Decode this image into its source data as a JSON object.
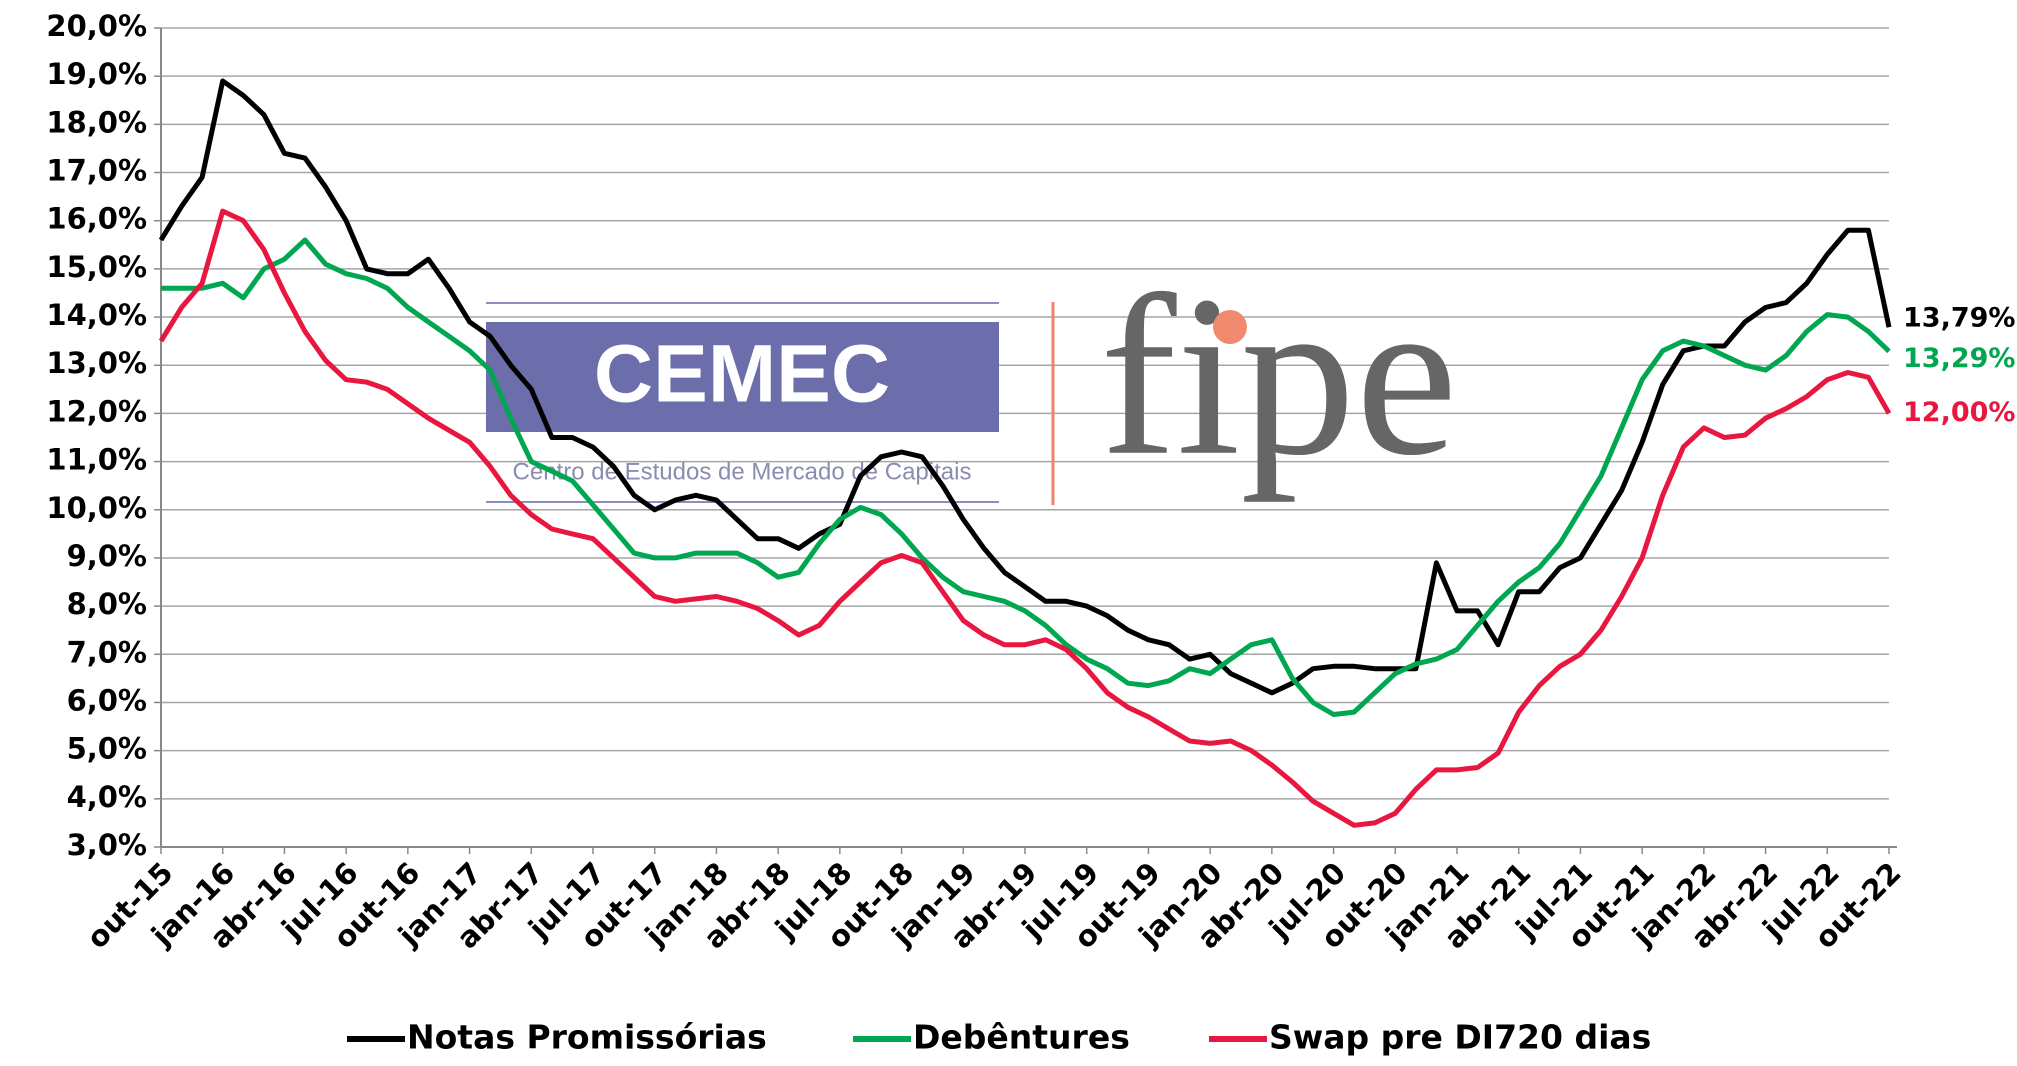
{
  "chart_data": {
    "type": "line",
    "logo": {
      "name": "CEMEC",
      "subtitle": "Centro de Estudos de Mercado de Capitais",
      "brand": "fipe"
    },
    "categories": [
      "out-15",
      null,
      null,
      "jan-16",
      null,
      null,
      "abr-16",
      null,
      null,
      "jul-16",
      null,
      null,
      "out-16",
      null,
      null,
      "jan-17",
      null,
      null,
      "abr-17",
      null,
      null,
      "jul-17",
      null,
      null,
      "out-17",
      null,
      null,
      "jan-18",
      null,
      null,
      "abr-18",
      null,
      null,
      "jul-18",
      null,
      null,
      "out-18",
      null,
      null,
      "jan-19",
      null,
      null,
      "abr-19",
      null,
      null,
      "jul-19",
      null,
      null,
      "out-19",
      null,
      null,
      "jan-20",
      null,
      null,
      "abr-20",
      null,
      null,
      "jul-20",
      null,
      null,
      "out-20",
      null,
      null,
      "jan-21",
      null,
      null,
      "abr-21",
      null,
      null,
      "jul-21",
      null,
      null,
      "out-21",
      null,
      null,
      "jan-22",
      null,
      null,
      "abr-22",
      null,
      null,
      "jul-22",
      null,
      null,
      "out-22"
    ],
    "series": [
      {
        "name": "Notas Promissórias",
        "color": "#000000",
        "last_label": "13,79%",
        "values": [
          15.6,
          16.3,
          16.9,
          18.9,
          18.6,
          18.2,
          17.4,
          17.3,
          16.7,
          16.0,
          15.0,
          14.9,
          14.9,
          15.2,
          14.6,
          13.9,
          13.6,
          13.0,
          12.5,
          11.5,
          11.5,
          11.3,
          10.9,
          10.3,
          10.0,
          10.2,
          10.3,
          10.2,
          9.8,
          9.4,
          9.4,
          9.2,
          9.5,
          9.7,
          10.7,
          11.1,
          11.2,
          11.1,
          10.5,
          9.8,
          9.2,
          8.7,
          8.4,
          8.1,
          8.1,
          8.0,
          7.8,
          7.5,
          7.3,
          7.2,
          6.9,
          7.0,
          6.6,
          6.4,
          6.2,
          6.4,
          6.7,
          6.75,
          6.75,
          6.7,
          6.7,
          6.7,
          8.9,
          7.9,
          7.9,
          7.2,
          8.3,
          8.3,
          8.8,
          9.0,
          9.7,
          10.4,
          11.4,
          12.6,
          13.3,
          13.4,
          13.4,
          13.9,
          14.2,
          14.3,
          14.7,
          15.3,
          15.8,
          15.8,
          13.79
        ]
      },
      {
        "name": "Debêntures",
        "color": "#00a650",
        "last_label": "13,29%",
        "values": [
          14.6,
          14.6,
          14.6,
          14.7,
          14.4,
          15.0,
          15.2,
          15.6,
          15.1,
          14.9,
          14.8,
          14.6,
          14.2,
          13.9,
          13.6,
          13.3,
          12.9,
          11.9,
          11.0,
          10.8,
          10.6,
          10.1,
          9.6,
          9.1,
          9.0,
          9.0,
          9.1,
          9.1,
          9.1,
          8.9,
          8.6,
          8.7,
          9.3,
          9.8,
          10.05,
          9.9,
          9.5,
          9.0,
          8.6,
          8.3,
          8.2,
          8.1,
          7.9,
          7.6,
          7.2,
          6.9,
          6.7,
          6.4,
          6.35,
          6.45,
          6.7,
          6.6,
          6.9,
          7.2,
          7.3,
          6.5,
          6.0,
          5.75,
          5.8,
          6.2,
          6.6,
          6.8,
          6.9,
          7.1,
          7.6,
          8.1,
          8.5,
          8.8,
          9.3,
          10.0,
          10.7,
          11.7,
          12.7,
          13.3,
          13.5,
          13.4,
          13.2,
          13.0,
          12.9,
          13.2,
          13.7,
          14.05,
          14.0,
          13.7,
          13.29
        ]
      },
      {
        "name": "Swap pre DI720 dias",
        "color": "#e8173f",
        "last_label": "12,00%",
        "values": [
          13.5,
          14.2,
          14.7,
          16.2,
          16.0,
          15.4,
          14.5,
          13.7,
          13.1,
          12.7,
          12.65,
          12.5,
          12.2,
          11.9,
          11.65,
          11.4,
          10.9,
          10.3,
          9.9,
          9.6,
          9.5,
          9.4,
          9.0,
          8.6,
          8.2,
          8.1,
          8.15,
          8.2,
          8.1,
          7.95,
          7.7,
          7.4,
          7.6,
          8.1,
          8.5,
          8.9,
          9.05,
          8.9,
          8.3,
          7.7,
          7.4,
          7.2,
          7.2,
          7.3,
          7.1,
          6.7,
          6.2,
          5.9,
          5.7,
          5.45,
          5.2,
          5.15,
          5.2,
          5.0,
          4.7,
          4.35,
          3.95,
          3.7,
          3.45,
          3.5,
          3.7,
          4.2,
          4.6,
          4.6,
          4.65,
          4.95,
          5.8,
          6.35,
          6.75,
          7.0,
          7.5,
          8.2,
          9.0,
          10.3,
          11.3,
          11.7,
          11.5,
          11.55,
          11.9,
          12.1,
          12.35,
          12.7,
          12.85,
          12.75,
          12.0
        ]
      }
    ],
    "ylim": [
      3,
      20
    ],
    "yticks": [
      {
        "value": 3,
        "label": "3,0%"
      },
      {
        "value": 4,
        "label": "4,0%"
      },
      {
        "value": 5,
        "label": "5,0%"
      },
      {
        "value": 6,
        "label": "6,0%"
      },
      {
        "value": 7,
        "label": "7,0%"
      },
      {
        "value": 8,
        "label": "8,0%"
      },
      {
        "value": 9,
        "label": "9,0%"
      },
      {
        "value": 10,
        "label": "10,0%"
      },
      {
        "value": 11,
        "label": "11,0%"
      },
      {
        "value": 12,
        "label": "12,0%"
      },
      {
        "value": 13,
        "label": "13,0%"
      },
      {
        "value": 14,
        "label": "14,0%"
      },
      {
        "value": 15,
        "label": "15,0%"
      },
      {
        "value": 16,
        "label": "16,0%"
      },
      {
        "value": 17,
        "label": "17,0%"
      },
      {
        "value": 18,
        "label": "18,0%"
      },
      {
        "value": 19,
        "label": "19,0%"
      },
      {
        "value": 20,
        "label": "20,0%"
      }
    ],
    "grid": true,
    "legend": "bottom"
  }
}
